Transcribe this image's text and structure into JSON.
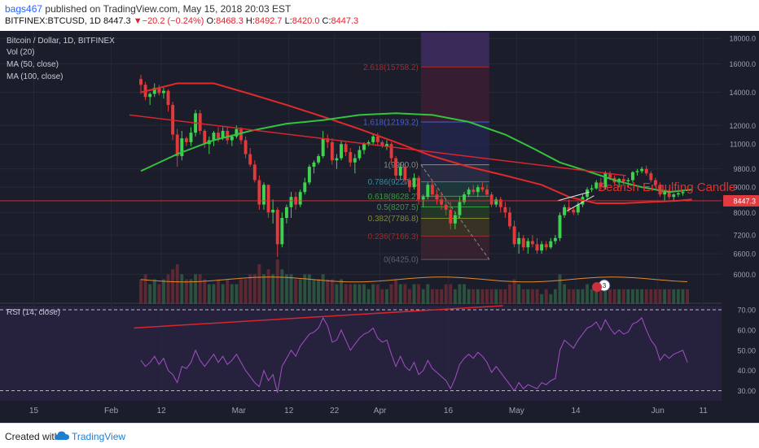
{
  "header": {
    "publisher_user": "bags467",
    "publisher_rest": "published on TradingView.com, May 15, 2018 20:03 EST",
    "symbol": "BITFINEX:BTCUSD, 1D",
    "last": "8447.3",
    "change_arrow": "▼",
    "change": "−20.2 (−0.24%)",
    "open_label": "O:",
    "open": "8468.3",
    "high_label": "H:",
    "high": "8492.7",
    "low_label": "L:",
    "low": "8420.0",
    "close_label": "C:",
    "close": "8447.3"
  },
  "legend": [
    "Bitcoin / Dollar, 1D, BITFINEX",
    "Vol (20)",
    "MA (50, close)",
    "MA (100, close)"
  ],
  "rsi_legend": "RSI (14, close)",
  "price_tag": "8447.3",
  "annotation": "Bearish Engulfing Candle",
  "event_badge": "3",
  "footer": {
    "created_with": "Created with",
    "brand": "TradingView"
  },
  "colors": {
    "up": "#3fd24e",
    "down": "#e03a3a",
    "ma50": "#35c23f",
    "ma100": "#e02a2a",
    "rsi": "#a34fc4",
    "trend": "#d8262a",
    "vol_ma": "#e28b2f"
  },
  "chart_data": {
    "type": "candlestick",
    "price_axis": {
      "ylim": [
        5300,
        18500
      ],
      "scale": "log",
      "ticks": [
        6000,
        6600,
        7200,
        8000,
        9000,
        9800,
        11000,
        12000,
        14000,
        16000,
        18000
      ]
    },
    "time_axis": {
      "start_date": "2018-01-09",
      "end_date": "2018-06-15",
      "labels": [
        "15",
        "Feb",
        "12",
        "Mar",
        "12",
        "22",
        "Apr",
        "16",
        "May",
        "14",
        "Jun",
        "11"
      ]
    },
    "ohlc": [
      [
        14900,
        15200,
        13900,
        14500
      ],
      [
        14500,
        14700,
        13500,
        13700
      ],
      [
        13700,
        14000,
        13200,
        13900
      ],
      [
        13900,
        14600,
        13700,
        14300
      ],
      [
        14300,
        14500,
        13800,
        13950
      ],
      [
        13950,
        14300,
        13600,
        14100
      ],
      [
        14100,
        14200,
        12800,
        13200
      ],
      [
        13200,
        13400,
        11200,
        11500
      ],
      [
        11500,
        11800,
        9900,
        10400
      ],
      [
        10400,
        11700,
        10200,
        11300
      ],
      [
        11300,
        11400,
        10900,
        11100
      ],
      [
        11100,
        11900,
        10900,
        11600
      ],
      [
        11600,
        12900,
        11400,
        12700
      ],
      [
        12700,
        12900,
        11500,
        11700
      ],
      [
        11700,
        11800,
        10800,
        11000
      ],
      [
        11000,
        11400,
        10500,
        11200
      ],
      [
        11200,
        11700,
        10900,
        11600
      ],
      [
        11600,
        11900,
        11100,
        11300
      ],
      [
        11300,
        11900,
        11200,
        11700
      ],
      [
        11700,
        11900,
        11000,
        11200
      ],
      [
        11200,
        11500,
        10900,
        11400
      ],
      [
        11400,
        12000,
        11300,
        11800
      ],
      [
        11800,
        11900,
        11000,
        11200
      ],
      [
        11200,
        11400,
        10300,
        10500
      ],
      [
        10500,
        10800,
        9900,
        10000
      ],
      [
        10000,
        10200,
        9200,
        9300
      ],
      [
        9300,
        9500,
        8100,
        8300
      ],
      [
        8300,
        9200,
        8100,
        9100
      ],
      [
        9100,
        9100,
        7800,
        8000
      ],
      [
        8000,
        8500,
        7600,
        8100
      ],
      [
        8100,
        8200,
        6500,
        6900
      ],
      [
        6900,
        8000,
        6800,
        7800
      ],
      [
        7800,
        8300,
        7600,
        8200
      ],
      [
        8200,
        8800,
        7800,
        8600
      ],
      [
        8600,
        8800,
        8100,
        8300
      ],
      [
        8300,
        8900,
        8200,
        8800
      ],
      [
        8800,
        9400,
        8700,
        9200
      ],
      [
        9200,
        10000,
        9100,
        9900
      ],
      [
        9900,
        10200,
        9600,
        10100
      ],
      [
        10100,
        10500,
        10000,
        10400
      ],
      [
        10400,
        11700,
        10300,
        11300
      ],
      [
        11300,
        11500,
        10800,
        11100
      ],
      [
        11100,
        11300,
        10000,
        10200
      ],
      [
        10200,
        10500,
        9800,
        10300
      ],
      [
        10300,
        11200,
        10200,
        11000
      ],
      [
        11000,
        11100,
        10400,
        10600
      ],
      [
        10600,
        10800,
        9900,
        10100
      ],
      [
        10100,
        10500,
        9600,
        10300
      ],
      [
        10300,
        10900,
        10200,
        10700
      ],
      [
        10700,
        11100,
        10500,
        11000
      ],
      [
        11000,
        11200,
        10900,
        11100
      ],
      [
        11100,
        11500,
        11000,
        11400
      ],
      [
        11400,
        11600,
        10900,
        11100
      ],
      [
        11100,
        11200,
        10800,
        10900
      ],
      [
        10900,
        11200,
        10700,
        11000
      ],
      [
        11000,
        11100,
        10100,
        10300
      ],
      [
        10300,
        10400,
        9300,
        9500
      ],
      [
        9500,
        10100,
        9300,
        9900
      ],
      [
        9900,
        10000,
        9100,
        9300
      ],
      [
        9300,
        9400,
        8800,
        9000
      ],
      [
        9000,
        9600,
        8900,
        9400
      ],
      [
        9400,
        9500,
        8300,
        8500
      ],
      [
        8500,
        8700,
        8200,
        8600
      ],
      [
        8600,
        9200,
        8500,
        9100
      ],
      [
        9100,
        9300,
        8600,
        8700
      ],
      [
        8700,
        8900,
        8300,
        8500
      ],
      [
        8500,
        8800,
        8100,
        8300
      ],
      [
        8300,
        8500,
        7900,
        8100
      ],
      [
        8100,
        8400,
        7400,
        7600
      ],
      [
        7600,
        8000,
        7400,
        7900
      ],
      [
        7900,
        8600,
        7800,
        8400
      ],
      [
        8400,
        8800,
        8300,
        8700
      ],
      [
        8700,
        9000,
        8600,
        8900
      ],
      [
        8900,
        9100,
        8700,
        8800
      ],
      [
        8800,
        9100,
        8600,
        9000
      ],
      [
        9000,
        9200,
        8800,
        8900
      ],
      [
        8900,
        9100,
        8600,
        8700
      ],
      [
        8700,
        8800,
        8200,
        8300
      ],
      [
        8300,
        8600,
        8200,
        8500
      ],
      [
        8500,
        8600,
        8000,
        8200
      ],
      [
        8200,
        8400,
        7800,
        8000
      ],
      [
        8000,
        8200,
        7400,
        7500
      ],
      [
        7500,
        7700,
        6800,
        6900
      ],
      [
        6900,
        7300,
        6600,
        7100
      ],
      [
        7100,
        7200,
        6700,
        6800
      ],
      [
        6800,
        7100,
        6600,
        7000
      ],
      [
        7000,
        7200,
        6800,
        6900
      ],
      [
        6900,
        7100,
        6600,
        6700
      ],
      [
        6700,
        7000,
        6600,
        6900
      ],
      [
        6900,
        7000,
        6700,
        6800
      ],
      [
        6800,
        7100,
        6750,
        7000
      ],
      [
        7000,
        7200,
        6900,
        7100
      ],
      [
        7100,
        8000,
        7000,
        7900
      ],
      [
        7900,
        8300,
        7800,
        8200
      ],
      [
        8200,
        8500,
        8000,
        8100
      ],
      [
        8100,
        8200,
        7900,
        8000
      ],
      [
        8000,
        8400,
        7900,
        8300
      ],
      [
        8300,
        8700,
        8200,
        8600
      ],
      [
        8600,
        9000,
        8500,
        8900
      ],
      [
        8900,
        9100,
        8800,
        8950
      ],
      [
        8950,
        9300,
        8900,
        9200
      ],
      [
        9200,
        9400,
        8900,
        9000
      ],
      [
        9000,
        9700,
        8900,
        9600
      ],
      [
        9600,
        9700,
        9300,
        9400
      ],
      [
        9400,
        9500,
        9100,
        9200
      ],
      [
        9200,
        9400,
        9000,
        9350
      ],
      [
        9350,
        9500,
        9100,
        9250
      ],
      [
        9250,
        9400,
        9000,
        9300
      ],
      [
        9300,
        9700,
        9200,
        9650
      ],
      [
        9650,
        9800,
        9500,
        9700
      ],
      [
        9700,
        9900,
        9600,
        9800
      ],
      [
        9800,
        9950,
        9500,
        9600
      ],
      [
        9600,
        9700,
        9200,
        9300
      ],
      [
        9300,
        9400,
        9000,
        9100
      ],
      [
        9100,
        9200,
        8600,
        8700
      ],
      [
        8700,
        8900,
        8400,
        8800
      ],
      [
        8800,
        8900,
        8500,
        8600
      ],
      [
        8600,
        8750,
        8450,
        8700
      ],
      [
        8700,
        8800,
        8600,
        8750
      ],
      [
        8750,
        8900,
        8650,
        8800
      ],
      [
        8468.3,
        8492.7,
        8420.0,
        8447.3
      ]
    ],
    "ma50": [
      [
        0,
        9700
      ],
      [
        8,
        10500
      ],
      [
        16,
        11200
      ],
      [
        24,
        11700
      ],
      [
        32,
        12100
      ],
      [
        40,
        12300
      ],
      [
        48,
        12600
      ],
      [
        56,
        12700
      ],
      [
        64,
        12600
      ],
      [
        72,
        12200
      ],
      [
        80,
        11500
      ],
      [
        86,
        10800
      ],
      [
        92,
        10100
      ],
      [
        98,
        9700
      ],
      [
        104,
        9300
      ],
      [
        110,
        9000
      ],
      [
        116,
        8800
      ],
      [
        121,
        8900
      ]
    ],
    "ma100": [
      [
        0,
        14000
      ],
      [
        8,
        14600
      ],
      [
        16,
        14600
      ],
      [
        24,
        13900
      ],
      [
        32,
        13200
      ],
      [
        40,
        12500
      ],
      [
        48,
        11800
      ],
      [
        56,
        11100
      ],
      [
        64,
        10400
      ],
      [
        72,
        9900
      ],
      [
        80,
        9500
      ],
      [
        88,
        9100
      ],
      [
        94,
        8600
      ],
      [
        100,
        8350
      ],
      [
        106,
        8350
      ],
      [
        112,
        8400
      ],
      [
        118,
        8450
      ],
      [
        121,
        8500
      ]
    ],
    "fibonacci": [
      {
        "label": "0(6425.0)",
        "value": 6425
      },
      {
        "label": "0.236(7166.3)",
        "value": 7166.3
      },
      {
        "label": "0.382(7786.8)",
        "value": 7786.8
      },
      {
        "label": "0.5(8207.5)",
        "value": 8207.5
      },
      {
        "label": "0.618(8628.2)",
        "value": 8628.2
      },
      {
        "label": "0.786(9227.1)",
        "value": 9227.1
      },
      {
        "label": "1(9990.0)",
        "value": 9990
      },
      {
        "label": "1.618(12193.2)",
        "value": 12193.2
      },
      {
        "label": "2.618(15758.2)",
        "value": 15758.2
      }
    ],
    "volume_relative": [
      5,
      6,
      4,
      5,
      4,
      5,
      6,
      7,
      8,
      6,
      5,
      5,
      6,
      6,
      5,
      4,
      4,
      5,
      4,
      5,
      4,
      4,
      5,
      5,
      6,
      6,
      8,
      6,
      7,
      6,
      9,
      7,
      6,
      6,
      5,
      5,
      6,
      6,
      5,
      5,
      6,
      5,
      5,
      4,
      5,
      4,
      4,
      4,
      4,
      4,
      3,
      4,
      4,
      3,
      3,
      4,
      5,
      4,
      4,
      3,
      4,
      4,
      3,
      4,
      3,
      3,
      3,
      4,
      4,
      3,
      4,
      4,
      3,
      3,
      3,
      3,
      3,
      3,
      3,
      3,
      3,
      4,
      5,
      4,
      3,
      3,
      3,
      3,
      2,
      3,
      2,
      3,
      6,
      4,
      3,
      3,
      3,
      3,
      4,
      3,
      3,
      3,
      4,
      3,
      3,
      3,
      3,
      3,
      3,
      3,
      3,
      3,
      3,
      3,
      3,
      3,
      3,
      3,
      3,
      3,
      3
    ],
    "rsi_axis": {
      "ylim": [
        25,
        72
      ],
      "ticks": [
        30,
        40,
        50,
        60,
        70
      ],
      "bands": [
        30,
        70
      ]
    },
    "rsi": [
      45,
      42,
      44,
      47,
      43,
      46,
      40,
      38,
      34,
      42,
      41,
      44,
      50,
      45,
      42,
      45,
      48,
      44,
      47,
      43,
      45,
      48,
      44,
      40,
      37,
      34,
      32,
      40,
      35,
      38,
      29,
      42,
      46,
      50,
      47,
      52,
      55,
      58,
      59,
      61,
      66,
      62,
      54,
      55,
      60,
      55,
      50,
      53,
      56,
      58,
      59,
      61,
      56,
      54,
      55,
      48,
      42,
      47,
      42,
      40,
      44,
      38,
      40,
      45,
      41,
      39,
      37,
      35,
      31,
      36,
      43,
      46,
      48,
      46,
      49,
      47,
      44,
      39,
      42,
      39,
      36,
      33,
      30,
      34,
      31,
      33,
      32,
      31,
      34,
      33,
      35,
      36,
      50,
      55,
      53,
      51,
      55,
      58,
      61,
      62,
      64,
      60,
      65,
      61,
      58,
      60,
      58,
      59,
      63,
      64,
      66,
      60,
      55,
      52,
      45,
      48,
      46,
      48,
      49,
      50,
      44
    ]
  }
}
